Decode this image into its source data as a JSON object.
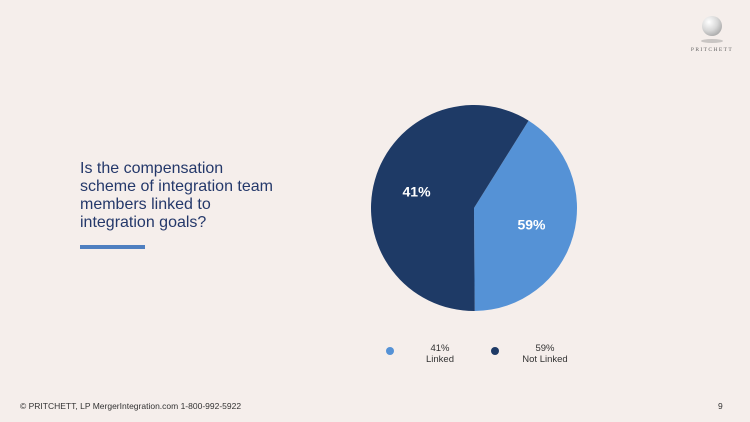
{
  "logo": {
    "text": "PRITCHETT"
  },
  "question": "Is the compensation scheme of integration team members linked to integration goals?",
  "colors": {
    "linked": "#5592d6",
    "not_linked": "#1e3a66",
    "accent": "#4f7fc0",
    "background": "#f5eeeb"
  },
  "chart_data": {
    "type": "pie",
    "title": "",
    "slices": [
      {
        "label": "Linked",
        "value": 41,
        "display": "41%",
        "color": "#5592d6"
      },
      {
        "label": "Not Linked",
        "value": 59,
        "display": "59%",
        "color": "#1e3a66"
      }
    ],
    "slice_labels": [
      "41%",
      "59%"
    ],
    "legend": [
      {
        "percent": "41%",
        "label": "Linked",
        "color": "#5592d6"
      },
      {
        "percent": "59%",
        "label": "Not Linked",
        "color": "#1e3a66"
      }
    ],
    "legend_placement": "bottom"
  },
  "footer": "© PRITCHETT, LP MergerIntegration.com 1-800-992-5922",
  "page_number": "9"
}
